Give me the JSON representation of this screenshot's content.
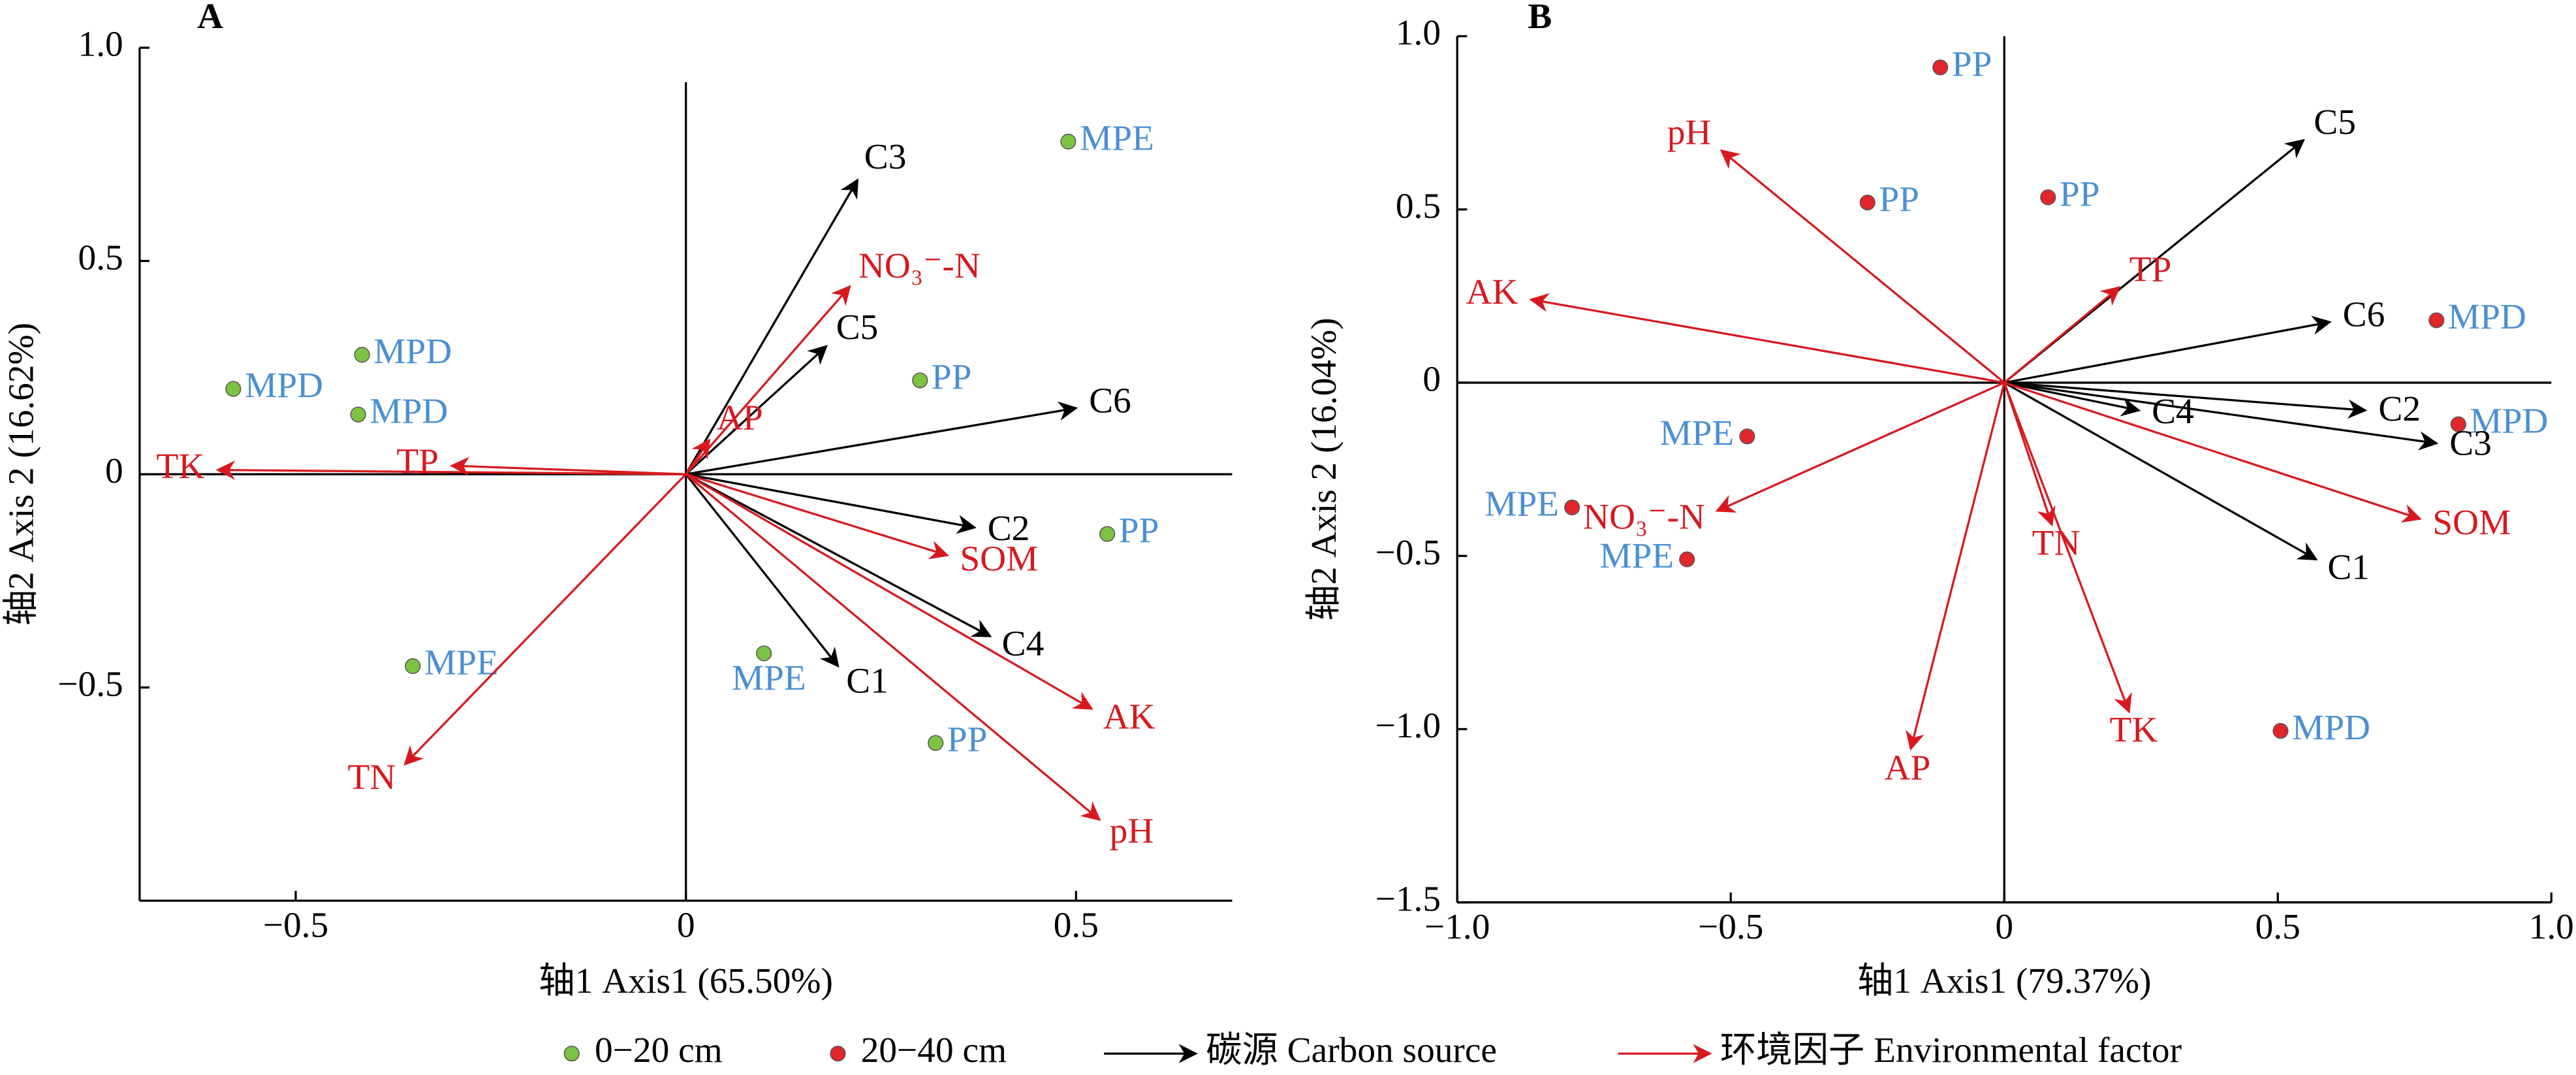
{
  "chart_data": [
    {
      "type": "scatter",
      "title": "A",
      "xlabel": "轴1 Axis1 (65.50%)",
      "ylabel": "轴2 Axis 2 (16.62%)",
      "xlim": [
        -0.7,
        0.7
      ],
      "ylim": [
        -1,
        1
      ],
      "xticks": [
        {
          "value": -0.5,
          "label": "−0.5"
        },
        0,
        0.5
      ],
      "yticks": [
        {
          "value": -0.5,
          "label": "−0.5"
        },
        0,
        0.5,
        {
          "value": 1,
          "label": "1.0"
        }
      ],
      "series": [
        {
          "marker": "point",
          "color": "#7dc242",
          "label_color": "#4a8fd4",
          "x": [
            0.49,
            -0.58,
            -0.415,
            -0.42,
            0.3,
            0.54,
            -0.35,
            0.1,
            0.32
          ],
          "y": [
            0.78,
            0.2,
            0.28,
            0.14,
            0.22,
            -0.14,
            -0.45,
            -0.42,
            -0.63
          ],
          "labels": [
            "MPE",
            "MPD",
            "MPD",
            "MPD",
            "PP",
            "PP",
            "MPE",
            "MPE",
            "PP"
          ]
        },
        {
          "marker": "arrow",
          "color": "#000000",
          "x": [
            0.22,
            0.18,
            0.5,
            0.37,
            0.39,
            0.195
          ],
          "y": [
            0.69,
            0.3,
            0.155,
            -0.125,
            -0.38,
            -0.45
          ],
          "labels": [
            "C3",
            "C5",
            "C6",
            "C2",
            "C4",
            "C1"
          ]
        },
        {
          "marker": "arrow",
          "color": "#d7191f",
          "x": [
            0.21,
            0.03,
            -0.3,
            -0.6,
            0.335,
            0.52,
            0.53,
            -0.36
          ],
          "y": [
            0.44,
            0.08,
            0.02,
            0.01,
            -0.19,
            -0.55,
            -0.81,
            -0.68
          ],
          "labels": [
            "NO₃⁻-N",
            "AP",
            "TP",
            "TK",
            "SOM",
            "AK",
            "pH",
            "TN"
          ]
        }
      ]
    },
    {
      "type": "scatter",
      "title": "B",
      "xlabel": "轴1 Axis1 (79.37%)",
      "ylabel": "轴2 Axis 2 (16.04%)",
      "xlim": [
        -1,
        1
      ],
      "ylim": [
        -1.5,
        1
      ],
      "xticks": [
        {
          "value": -1,
          "label": "−1.0"
        },
        {
          "value": -0.5,
          "label": "−0.5"
        },
        0,
        0.5,
        {
          "value": 1,
          "label": "1.0"
        }
      ],
      "yticks": [
        {
          "value": -1.5,
          "label": "−1.5"
        },
        {
          "value": -1,
          "label": "−1.0"
        },
        {
          "value": -0.5,
          "label": "−0.5"
        },
        0,
        0.5,
        {
          "value": 1,
          "label": "1.0"
        }
      ],
      "series": [
        {
          "marker": "point",
          "color": "#e2262b",
          "label_color": "#4a8fd4",
          "x": [
            -0.117,
            -0.25,
            0.08,
            0.79,
            0.83,
            -0.47,
            -0.79,
            -0.58,
            0.505
          ],
          "y": [
            0.91,
            0.52,
            0.535,
            0.18,
            -0.12,
            -0.155,
            -0.36,
            -0.51,
            -1.005
          ],
          "labels": [
            "PP",
            "PP",
            "PP",
            "MPD",
            "MPD",
            "MPE",
            "MPE",
            "MPE",
            "MPD"
          ]
        },
        {
          "marker": "arrow",
          "color": "#000000",
          "x": [
            0.547,
            0.595,
            0.66,
            0.79,
            0.246,
            0.57
          ],
          "y": [
            0.7,
            0.175,
            -0.08,
            -0.175,
            -0.08,
            -0.51
          ],
          "labels": [
            "C5",
            "C6",
            "C2",
            "C3",
            "C4",
            "C1"
          ]
        },
        {
          "marker": "arrow",
          "color": "#d7191f",
          "x": [
            -0.517,
            -0.865,
            0.21,
            -0.525,
            0.087,
            0.228,
            -0.171,
            0.76
          ],
          "y": [
            0.67,
            0.24,
            0.275,
            -0.37,
            -0.41,
            -0.95,
            -1.057,
            -0.393
          ],
          "labels": [
            "pH",
            "AK",
            "TP",
            "NO₃⁻-N",
            "TN",
            "TK",
            "AP",
            "SOM"
          ]
        }
      ]
    }
  ],
  "legend": [
    {
      "label": "0−20 cm",
      "marker": "point",
      "color": "#7dc242"
    },
    {
      "label": "20−40 cm",
      "marker": "point",
      "color": "#e2262b"
    },
    {
      "label": "碳源 Carbon source",
      "marker": "arrow",
      "color": "#000000"
    },
    {
      "label": "环境因子 Environmental factor",
      "marker": "arrow",
      "color": "#d7191f"
    }
  ]
}
